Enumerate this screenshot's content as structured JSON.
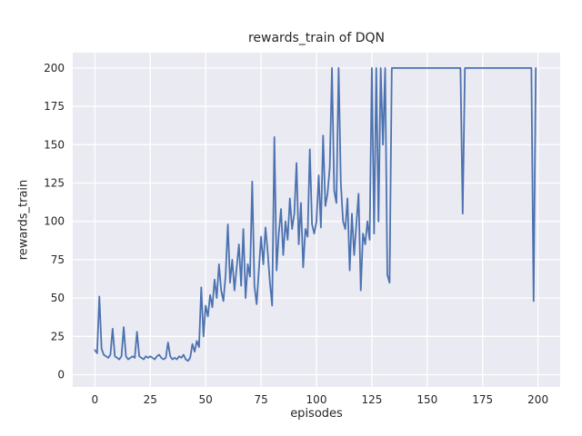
{
  "chart_data": {
    "type": "line",
    "title": "rewards_train of DQN",
    "xlabel": "episodes",
    "ylabel": "rewards_train",
    "x_start": 0,
    "xlim": [
      -10,
      210
    ],
    "ylim": [
      -8,
      210
    ],
    "xticks": [
      0,
      25,
      50,
      75,
      100,
      125,
      150,
      175,
      200
    ],
    "yticks": [
      0,
      25,
      50,
      75,
      100,
      125,
      150,
      175,
      200
    ],
    "grid": true,
    "legend": "none",
    "colors": {
      "line": "#4c72b0",
      "plot_bg": "#eaeaf2",
      "grid": "#ffffff",
      "text": "#262626",
      "figure_bg": "#ffffff"
    },
    "series": [
      {
        "name": "rewards_train",
        "values": [
          16,
          14,
          51,
          17,
          13,
          12,
          11,
          13,
          30,
          12,
          11,
          10,
          12,
          31,
          12,
          10,
          11,
          12,
          11,
          28,
          12,
          11,
          10,
          12,
          11,
          12,
          11,
          10,
          12,
          13,
          11,
          10,
          11,
          21,
          12,
          10,
          11,
          10,
          12,
          11,
          13,
          10,
          9,
          11,
          20,
          15,
          22,
          18,
          57,
          25,
          45,
          38,
          52,
          44,
          62,
          50,
          72,
          55,
          48,
          65,
          98,
          60,
          75,
          55,
          70,
          85,
          58,
          95,
          50,
          72,
          64,
          126,
          58,
          46,
          68,
          90,
          72,
          96,
          80,
          60,
          45,
          155,
          68,
          92,
          108,
          78,
          100,
          88,
          115,
          95,
          105,
          138,
          85,
          112,
          70,
          95,
          90,
          147,
          98,
          92,
          100,
          130,
          96,
          156,
          110,
          118,
          135,
          200,
          120,
          112,
          200,
          125,
          100,
          95,
          115,
          68,
          105,
          78,
          98,
          118,
          55,
          92,
          85,
          100,
          88,
          200,
          92,
          200,
          100,
          200,
          150,
          200,
          65,
          60,
          200,
          200,
          200,
          200,
          200,
          200,
          200,
          200,
          200,
          200,
          200,
          200,
          200,
          200,
          200,
          200,
          200,
          200,
          200,
          200,
          200,
          200,
          200,
          200,
          200,
          200,
          200,
          200,
          200,
          200,
          200,
          200,
          105,
          200,
          200,
          200,
          200,
          200,
          200,
          200,
          200,
          200,
          200,
          200,
          200,
          200,
          200,
          200,
          200,
          200,
          200,
          200,
          200,
          200,
          200,
          200,
          200,
          200,
          200,
          200,
          200,
          200,
          200,
          200,
          48,
          200
        ]
      }
    ]
  }
}
